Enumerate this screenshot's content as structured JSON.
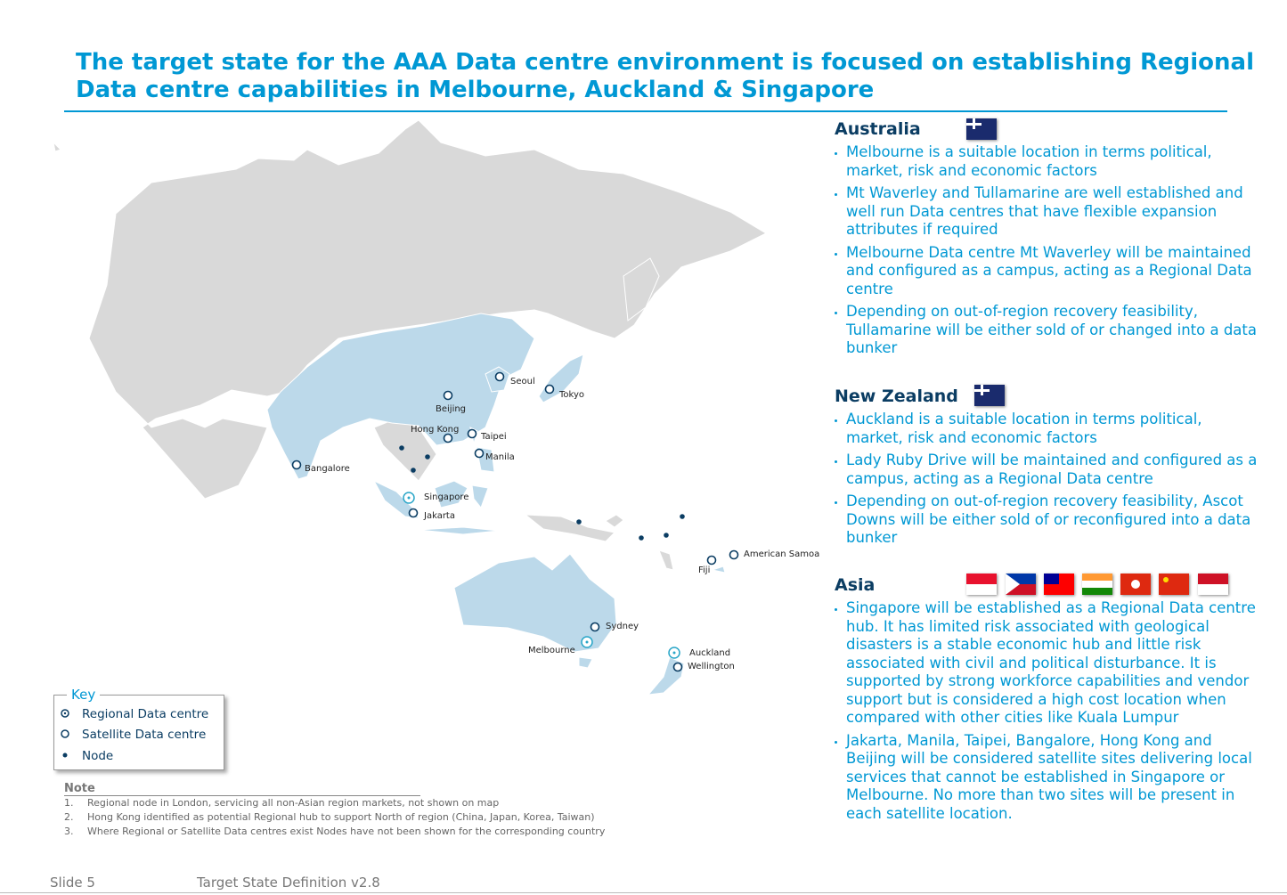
{
  "header": {
    "title": "The target state for the AAA Data centre environment is focused on establishing Regional Data centre capabilities in Melbourne, Auckland & Singapore"
  },
  "map": {
    "cities": [
      "Seoul",
      "Tokyo",
      "Beijing",
      "Hong Kong",
      "Taipei",
      "Manila",
      "Bangalore",
      "Singapore",
      "Jakarta",
      "American Samoa",
      "Fiji",
      "Sydney",
      "Melbourne",
      "Auckland",
      "Wellington"
    ]
  },
  "key": {
    "title": "Key",
    "items": [
      "Regional Data centre",
      "Satellite Data centre",
      "Node"
    ]
  },
  "notes": {
    "title": "Note",
    "items": [
      {
        "number": "1.",
        "text": "Regional node in London, servicing all non-Asian region markets, not shown on map"
      },
      {
        "number": "2.",
        "text": "Hong Kong identified as potential Regional hub to support North of region (China, Japan, Korea, Taiwan)"
      },
      {
        "number": "3.",
        "text": "Where Regional or Satellite Data centres exist Nodes have not been shown for the corresponding country"
      }
    ]
  },
  "sections": [
    {
      "heading": "Australia",
      "bullets": [
        "Melbourne is a suitable location in terms  political, market, risk and economic factors",
        "Mt Waverley and Tullamarine are well established and well run Data centres that have flexible expansion attributes if required",
        "Melbourne Data centre Mt Waverley will be maintained and configured as a campus, acting as a Regional Data centre",
        "Depending on out-of-region recovery feasibility, Tullamarine will be either sold of or changed into a data bunker"
      ]
    },
    {
      "heading": "New Zealand",
      "bullets": [
        "Auckland is a suitable location in terms  political, market, risk and economic factors",
        "Lady Ruby Drive will be maintained and configured as a campus, acting as a Regional Data centre",
        "Depending on out-of-region recovery feasibility, Ascot Downs will be either sold of or reconfigured into a data bunker"
      ]
    },
    {
      "heading": "Asia",
      "bullets": [
        "Singapore will be established as a Regional Data centre hub. It has limited risk associated with geological disasters is a stable economic hub  and little risk associated with civil and political disturbance. It is supported by strong workforce capabilities and vendor support but is considered a high cost location when compared with other cities like Kuala Lumpur",
        "Jakarta, Manila, Taipei, Bangalore, Hong Kong and Beijing will be considered satellite sites delivering local services that cannot be established in Singapore or Melbourne. No more than two sites will be present in each satellite location."
      ]
    }
  ],
  "footer": {
    "slide": "Slide 5",
    "doc": "Target State Definition v2.8"
  }
}
